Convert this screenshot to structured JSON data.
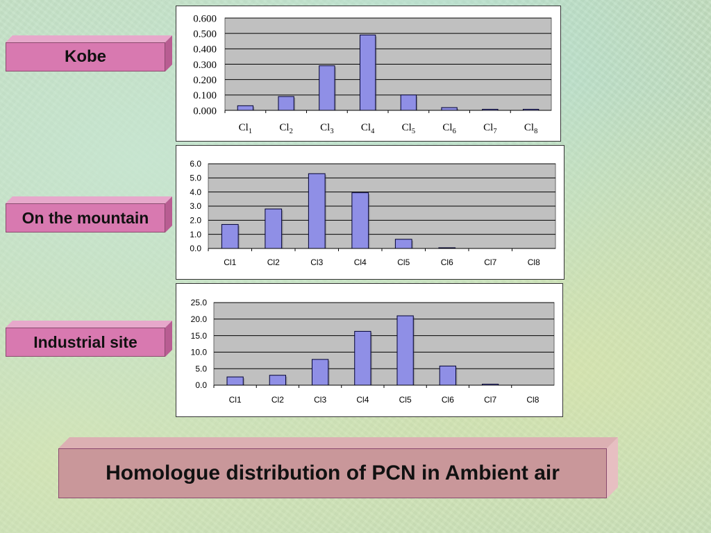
{
  "labels": {
    "kobe": "Kobe",
    "mountain": "On the mountain",
    "industrial": "Industrial site",
    "title": "Homologue distribution of PCN in Ambient air"
  },
  "colors": {
    "bar_fill": "#8f8fe6",
    "plot_bg": "#c0c0c0",
    "label_pink": "#d879b0",
    "title_box": "#c9979a"
  },
  "chart_data": [
    {
      "type": "bar",
      "categories": [
        {
          "base": "Cl",
          "sub": "1"
        },
        {
          "base": "Cl",
          "sub": "2"
        },
        {
          "base": "Cl",
          "sub": "3"
        },
        {
          "base": "Cl",
          "sub": "4"
        },
        {
          "base": "Cl",
          "sub": "5"
        },
        {
          "base": "Cl",
          "sub": "6"
        },
        {
          "base": "Cl",
          "sub": "7"
        },
        {
          "base": "Cl",
          "sub": "8"
        }
      ],
      "values": [
        0.03,
        0.09,
        0.29,
        0.49,
        0.1,
        0.018,
        0.007,
        0.007
      ],
      "yticks": [
        "0.000",
        "0.100",
        "0.200",
        "0.300",
        "0.400",
        "0.500",
        "0.600"
      ],
      "ylim": [
        0,
        0.6
      ],
      "grid": true
    },
    {
      "type": "bar",
      "categories": [
        "Cl1",
        "Cl2",
        "Cl3",
        "Cl4",
        "Cl5",
        "Cl6",
        "Cl7",
        "Cl8"
      ],
      "values": [
        1.7,
        2.8,
        5.3,
        3.95,
        0.65,
        0.05,
        0.0,
        0.0
      ],
      "yticks": [
        "0.0",
        "1.0",
        "2.0",
        "3.0",
        "4.0",
        "5.0",
        "6.0"
      ],
      "ylim": [
        0,
        6
      ],
      "grid": true
    },
    {
      "type": "bar",
      "categories": [
        "Cl1",
        "Cl2",
        "Cl3",
        "Cl4",
        "Cl5",
        "Cl6",
        "Cl7",
        "Cl8"
      ],
      "values": [
        2.5,
        3.0,
        7.8,
        16.3,
        21.0,
        5.8,
        0.3,
        0.0
      ],
      "yticks": [
        "0.0",
        "5.0",
        "10.0",
        "15.0",
        "20.0",
        "25.0"
      ],
      "ylim": [
        0,
        25
      ],
      "grid": true
    }
  ]
}
